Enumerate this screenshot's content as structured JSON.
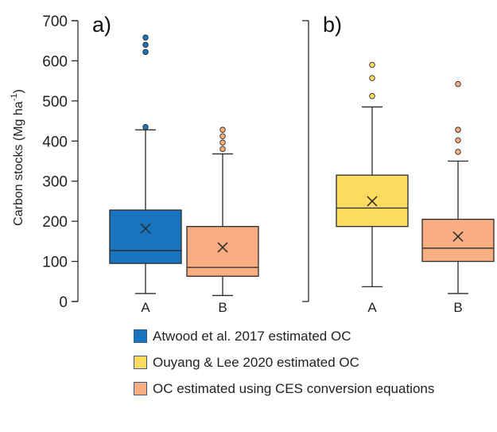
{
  "colors": {
    "atwood": "#1874bf",
    "ouyang": "#fbdc5e",
    "ces": "#f9ae82",
    "line": "#2b2b2b"
  },
  "chart_data": [
    {
      "type": "box",
      "panel_label": "a)",
      "ylabel": "Carbon stocks (Mg ha-1)",
      "ylabel_main": "Carbon stocks (Mg ha",
      "ylabel_sup": "-1",
      "ylabel_close": ")",
      "ylim": [
        0,
        700
      ],
      "yticks": [
        0,
        100,
        200,
        300,
        400,
        500,
        600,
        700
      ],
      "categories": [
        "A",
        "B"
      ],
      "boxes": [
        {
          "category": "A",
          "series": "Atwood et al. 2017 estimated OC",
          "color": "atwood",
          "min": 20,
          "q1": 95,
          "median": 127,
          "mean": 182,
          "q3": 228,
          "max": 428,
          "outliers": [
            435,
            622,
            640,
            658
          ]
        },
        {
          "category": "B",
          "series": "OC estimated using CES conversion equations",
          "color": "ces",
          "min": 15,
          "q1": 63,
          "median": 85,
          "mean": 135,
          "q3": 187,
          "max": 368,
          "outliers": [
            380,
            396,
            412,
            428
          ]
        }
      ]
    },
    {
      "type": "box",
      "panel_label": "b)",
      "ylim": [
        0,
        700
      ],
      "categories": [
        "A",
        "B"
      ],
      "boxes": [
        {
          "category": "A",
          "series": "Ouyang & Lee 2020 estimated OC",
          "color": "ouyang",
          "min": 37,
          "q1": 187,
          "median": 233,
          "mean": 250,
          "q3": 315,
          "max": 485,
          "outliers": [
            512,
            557,
            590
          ]
        },
        {
          "category": "B",
          "series": "OC estimated using CES conversion equations",
          "color": "ces",
          "min": 20,
          "q1": 100,
          "median": 133,
          "mean": 162,
          "q3": 205,
          "max": 350,
          "outliers": [
            373,
            402,
            428,
            542
          ]
        }
      ]
    }
  ],
  "legend": [
    {
      "label": "Atwood et al. 2017 estimated OC",
      "color": "atwood"
    },
    {
      "label": "Ouyang & Lee 2020 estimated OC",
      "color": "ouyang"
    },
    {
      "label": "OC estimated using CES conversion equations",
      "color": "ces"
    }
  ]
}
